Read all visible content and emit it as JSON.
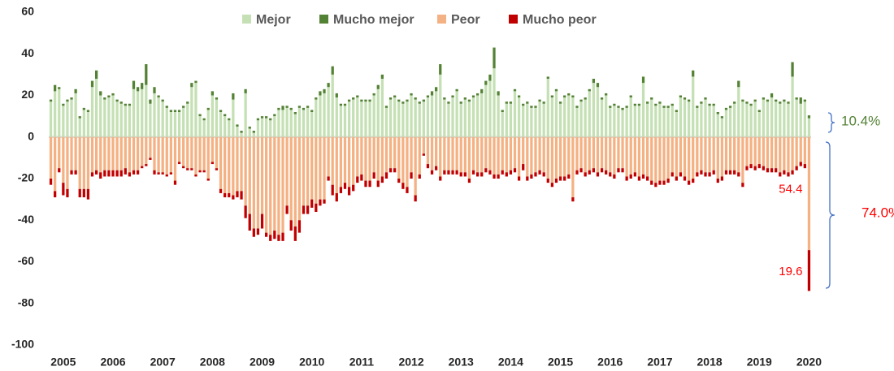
{
  "chart_data": {
    "type": "diverging_stacked_bar",
    "categories": [
      null,
      null,
      null,
      "2005",
      null,
      null,
      null,
      null,
      null,
      null,
      null,
      null,
      null,
      null,
      null,
      "2006",
      null,
      null,
      null,
      null,
      null,
      null,
      null,
      null,
      null,
      null,
      null,
      "2007",
      null,
      null,
      null,
      null,
      null,
      null,
      null,
      null,
      null,
      null,
      null,
      "2008",
      null,
      null,
      null,
      null,
      null,
      null,
      null,
      null,
      null,
      null,
      null,
      "2009",
      null,
      null,
      null,
      null,
      null,
      null,
      null,
      null,
      null,
      null,
      null,
      "2010",
      null,
      null,
      null,
      null,
      null,
      null,
      null,
      null,
      null,
      null,
      null,
      "2011",
      null,
      null,
      null,
      null,
      null,
      null,
      null,
      null,
      null,
      null,
      null,
      "2012",
      null,
      null,
      null,
      null,
      null,
      null,
      null,
      null,
      null,
      null,
      null,
      "2013",
      null,
      null,
      null,
      null,
      null,
      null,
      null,
      null,
      null,
      null,
      null,
      "2014",
      null,
      null,
      null,
      null,
      null,
      null,
      null,
      null,
      null,
      null,
      null,
      "2015",
      null,
      null,
      null,
      null,
      null,
      null,
      null,
      null,
      null,
      null,
      null,
      "2016",
      null,
      null,
      null,
      null,
      null,
      null,
      null,
      null,
      null,
      null,
      null,
      "2017",
      null,
      null,
      null,
      null,
      null,
      null,
      null,
      null,
      null,
      null,
      null,
      "2018",
      null,
      null,
      null,
      null,
      null,
      null,
      null,
      null,
      null,
      null,
      null,
      "2019",
      null,
      null,
      null,
      null,
      null,
      null,
      null,
      null,
      null,
      null,
      null,
      "2020"
    ],
    "series": [
      {
        "name": "Mejor",
        "color": "#c5e0b4",
        "stack": "pos",
        "values": [
          17,
          22,
          23,
          15,
          17,
          18,
          21,
          9,
          13,
          12,
          24,
          28,
          20,
          18,
          19,
          20,
          17,
          16,
          15,
          15,
          23,
          22,
          23,
          25,
          16,
          21,
          19,
          17,
          14,
          12,
          12,
          12,
          14,
          16,
          24,
          26,
          10,
          8,
          13,
          20,
          18,
          12,
          10,
          8,
          18,
          5,
          2,
          21,
          4,
          2,
          8,
          9,
          9,
          8,
          10,
          13,
          13,
          14,
          13,
          11,
          14,
          13,
          14,
          12,
          18,
          20,
          21,
          24,
          30,
          19,
          15,
          15,
          17,
          18,
          19,
          17,
          17,
          17,
          20,
          23,
          28,
          14,
          18,
          19,
          17,
          16,
          17,
          20,
          18,
          16,
          17,
          19,
          20,
          22,
          30,
          18,
          16,
          19,
          22,
          16,
          18,
          17,
          19,
          20,
          21,
          25,
          27,
          33,
          20,
          12,
          16,
          16,
          22,
          19,
          15,
          16,
          14,
          14,
          17,
          16,
          28,
          19,
          22,
          16,
          19,
          20,
          19,
          14,
          17,
          18,
          22,
          26,
          24,
          18,
          20,
          14,
          15,
          14,
          13,
          14,
          19,
          15,
          15,
          26,
          16,
          18,
          15,
          16,
          14,
          14,
          15,
          12,
          19,
          18,
          17,
          29,
          14,
          16,
          18,
          15,
          15,
          11,
          9,
          13,
          14,
          16,
          24,
          17,
          16,
          15,
          17,
          12,
          18,
          17,
          19,
          17,
          16,
          17,
          16,
          29,
          18,
          16,
          17,
          9
        ]
      },
      {
        "name": "Mucho mejor",
        "color": "#548235",
        "stack": "pos",
        "values": [
          1,
          3,
          1,
          1,
          1,
          1,
          2,
          1,
          1,
          1,
          3,
          4,
          2,
          1,
          1,
          1,
          1,
          1,
          1,
          1,
          4,
          2,
          3,
          10,
          2,
          3,
          1,
          1,
          1,
          1,
          1,
          1,
          1,
          1,
          2,
          1,
          1,
          1,
          1,
          2,
          1,
          1,
          1,
          1,
          3,
          1,
          1,
          2,
          1,
          1,
          1,
          1,
          1,
          1,
          1,
          1,
          2,
          1,
          1,
          1,
          1,
          1,
          1,
          1,
          1,
          2,
          2,
          2,
          4,
          2,
          1,
          1,
          1,
          1,
          1,
          1,
          1,
          1,
          1,
          2,
          2,
          1,
          1,
          1,
          1,
          1,
          1,
          1,
          1,
          1,
          1,
          1,
          2,
          2,
          5,
          1,
          1,
          1,
          1,
          1,
          1,
          1,
          1,
          1,
          2,
          2,
          3,
          10,
          2,
          1,
          1,
          1,
          1,
          1,
          1,
          1,
          1,
          1,
          1,
          1,
          1,
          1,
          1,
          1,
          1,
          1,
          1,
          1,
          1,
          1,
          1,
          2,
          2,
          1,
          1,
          1,
          1,
          1,
          1,
          1,
          1,
          1,
          1,
          3,
          1,
          1,
          1,
          1,
          1,
          1,
          1,
          1,
          1,
          1,
          1,
          3,
          1,
          1,
          1,
          1,
          1,
          1,
          1,
          1,
          1,
          1,
          3,
          1,
          1,
          1,
          1,
          1,
          1,
          1,
          2,
          1,
          1,
          1,
          1,
          7,
          1,
          3,
          1,
          1.4
        ]
      },
      {
        "name": "Peor",
        "color": "#f4b183",
        "stack": "neg",
        "values": [
          -20,
          -26,
          -15,
          -22,
          -25,
          -16,
          -16,
          -25,
          -25,
          -25,
          -17,
          -16,
          -17,
          -16,
          -16,
          -16,
          -16,
          -16,
          -15,
          -17,
          -16,
          -16,
          -14,
          -13,
          -10,
          -16,
          -17,
          -17,
          -18,
          -17,
          -21,
          -12,
          -14,
          -15,
          -15,
          -18,
          -16,
          -16,
          -20,
          -12,
          -15,
          -25,
          -27,
          -27,
          -28,
          -26,
          -26,
          -33,
          -37,
          -44,
          -44,
          -37,
          -46,
          -47,
          -45,
          -47,
          -46,
          -33,
          -40,
          -43,
          -40,
          -33,
          -33,
          -30,
          -32,
          -30,
          -30,
          -19,
          -23,
          -27,
          -24,
          -22,
          -24,
          -23,
          -19,
          -18,
          -21,
          -21,
          -17,
          -21,
          -19,
          -17,
          -15,
          -15,
          -20,
          -22,
          -24,
          -17,
          -28,
          -18,
          -8,
          -13,
          -16,
          -14,
          -19,
          -16,
          -16,
          -16,
          -16,
          -17,
          -17,
          -20,
          -16,
          -17,
          -17,
          -15,
          -16,
          -18,
          -18,
          -16,
          -17,
          -16,
          -15,
          -19,
          -13,
          -19,
          -18,
          -17,
          -16,
          -17,
          -20,
          -22,
          -20,
          -19,
          -19,
          -18,
          -29,
          -16,
          -15,
          -17,
          -16,
          -15,
          -17,
          -15,
          -16,
          -17,
          -18,
          -15,
          -15,
          -19,
          -18,
          -17,
          -19,
          -18,
          -19,
          -21,
          -22,
          -21,
          -21,
          -20,
          -17,
          -19,
          -17,
          -19,
          -21,
          -20,
          -17,
          -16,
          -17,
          -17,
          -16,
          -20,
          -19,
          -16,
          -16,
          -16,
          -17,
          -22,
          -14,
          -13,
          -14,
          -13,
          -14,
          -15,
          -15,
          -15,
          -17,
          -16,
          -17,
          -16,
          -14,
          -12,
          -13,
          -54.4
        ],
        "value_labels": [
          null,
          null,
          null,
          null,
          null,
          null,
          null,
          null,
          null,
          null,
          null,
          null,
          null,
          null,
          null,
          null,
          null,
          null,
          null,
          null,
          null,
          null,
          null,
          null,
          null,
          null,
          null,
          null,
          null,
          null,
          null,
          null,
          null,
          null,
          null,
          null,
          null,
          null,
          null,
          null,
          null,
          null,
          null,
          null,
          null,
          null,
          null,
          null,
          null,
          null,
          null,
          null,
          null,
          null,
          null,
          null,
          null,
          null,
          null,
          null,
          null,
          null,
          null,
          null,
          null,
          null,
          null,
          null,
          null,
          null,
          null,
          null,
          null,
          null,
          null,
          null,
          null,
          null,
          null,
          null,
          null,
          null,
          null,
          null,
          null,
          null,
          null,
          null,
          null,
          null,
          null,
          null,
          null,
          null,
          null,
          null,
          null,
          null,
          null,
          null,
          null,
          null,
          null,
          null,
          null,
          null,
          null,
          null,
          null,
          null,
          null,
          null,
          null,
          null,
          null,
          null,
          null,
          null,
          null,
          null,
          null,
          null,
          null,
          null,
          null,
          null,
          null,
          null,
          null,
          null,
          null,
          null,
          null,
          null,
          null,
          null,
          null,
          null,
          null,
          null,
          null,
          null,
          null,
          null,
          null,
          null,
          null,
          null,
          null,
          null,
          null,
          null,
          null,
          null,
          null,
          null,
          null,
          null,
          null,
          null,
          null,
          null,
          null,
          null,
          null,
          null,
          null,
          null,
          null,
          null,
          null,
          null,
          null,
          null,
          null,
          null,
          null,
          null,
          null,
          null,
          null,
          null,
          null,
          "54.4"
        ]
      },
      {
        "name": "Mucho peor",
        "color": "#c00000",
        "stack": "neg",
        "values": [
          -3,
          -3,
          -2,
          -6,
          -4,
          -2,
          -2,
          -4,
          -4,
          -5,
          -2,
          -2,
          -3,
          -3,
          -3,
          -3,
          -3,
          -3,
          -3,
          -2,
          -2,
          -2,
          -1,
          -1,
          -1,
          -2,
          -1,
          -1,
          -1,
          -1,
          -2,
          -1,
          -1,
          -1,
          -1,
          -1,
          -1,
          -1,
          -1,
          -1,
          -1,
          -2,
          -2,
          -2,
          -2,
          -3,
          -4,
          -6,
          -8,
          -4,
          -3,
          -7,
          -2,
          -3,
          -4,
          -3,
          -4,
          -4,
          -5,
          -7,
          -6,
          -4,
          -4,
          -4,
          -4,
          -3,
          -2,
          -2,
          -5,
          -4,
          -3,
          -3,
          -4,
          -3,
          -3,
          -3,
          -3,
          -3,
          -3,
          -3,
          -3,
          -3,
          -2,
          -2,
          -2,
          -3,
          -3,
          -3,
          -3,
          -2,
          -1,
          -2,
          -2,
          -2,
          -2,
          -2,
          -2,
          -2,
          -2,
          -2,
          -2,
          -2,
          -2,
          -2,
          -2,
          -2,
          -2,
          -2,
          -2,
          -2,
          -2,
          -2,
          -2,
          -2,
          -3,
          -2,
          -2,
          -2,
          -2,
          -2,
          -2,
          -2,
          -2,
          -2,
          -2,
          -2,
          -2,
          -2,
          -2,
          -2,
          -2,
          -2,
          -2,
          -2,
          -2,
          -2,
          -2,
          -2,
          -2,
          -2,
          -2,
          -2,
          -2,
          -2,
          -2,
          -2,
          -2,
          -2,
          -2,
          -2,
          -2,
          -2,
          -2,
          -2,
          -2,
          -2,
          -2,
          -2,
          -2,
          -2,
          -2,
          -2,
          -2,
          -2,
          -2,
          -2,
          -2,
          -2,
          -2,
          -2,
          -2,
          -2,
          -2,
          -2,
          -2,
          -2,
          -2,
          -2,
          -2,
          -2,
          -2,
          -2,
          -2,
          -19.6
        ],
        "value_labels": [
          null,
          null,
          null,
          null,
          null,
          null,
          null,
          null,
          null,
          null,
          null,
          null,
          null,
          null,
          null,
          null,
          null,
          null,
          null,
          null,
          null,
          null,
          null,
          null,
          null,
          null,
          null,
          null,
          null,
          null,
          null,
          null,
          null,
          null,
          null,
          null,
          null,
          null,
          null,
          null,
          null,
          null,
          null,
          null,
          null,
          null,
          null,
          null,
          null,
          null,
          null,
          null,
          null,
          null,
          null,
          null,
          null,
          null,
          null,
          null,
          null,
          null,
          null,
          null,
          null,
          null,
          null,
          null,
          null,
          null,
          null,
          null,
          null,
          null,
          null,
          null,
          null,
          null,
          null,
          null,
          null,
          null,
          null,
          null,
          null,
          null,
          null,
          null,
          null,
          null,
          null,
          null,
          null,
          null,
          null,
          null,
          null,
          null,
          null,
          null,
          null,
          null,
          null,
          null,
          null,
          null,
          null,
          null,
          null,
          null,
          null,
          null,
          null,
          null,
          null,
          null,
          null,
          null,
          null,
          null,
          null,
          null,
          null,
          null,
          null,
          null,
          null,
          null,
          null,
          null,
          null,
          null,
          null,
          null,
          null,
          null,
          null,
          null,
          null,
          null,
          null,
          null,
          null,
          null,
          null,
          null,
          null,
          null,
          null,
          null,
          null,
          null,
          null,
          null,
          null,
          null,
          null,
          null,
          null,
          null,
          null,
          null,
          null,
          null,
          null,
          null,
          null,
          null,
          null,
          null,
          null,
          null,
          null,
          null,
          null,
          null,
          null,
          null,
          null,
          null,
          null,
          null,
          null,
          "19.6"
        ]
      }
    ],
    "annotations": [
      {
        "text": "10.4%",
        "color": "#548235"
      },
      {
        "text": "74.0%",
        "color": "#ff0000"
      }
    ],
    "ylim": [
      -100,
      60
    ],
    "yticks": [
      -100,
      -80,
      -60,
      -40,
      -20,
      0,
      20,
      40,
      60
    ],
    "legend": "top"
  }
}
